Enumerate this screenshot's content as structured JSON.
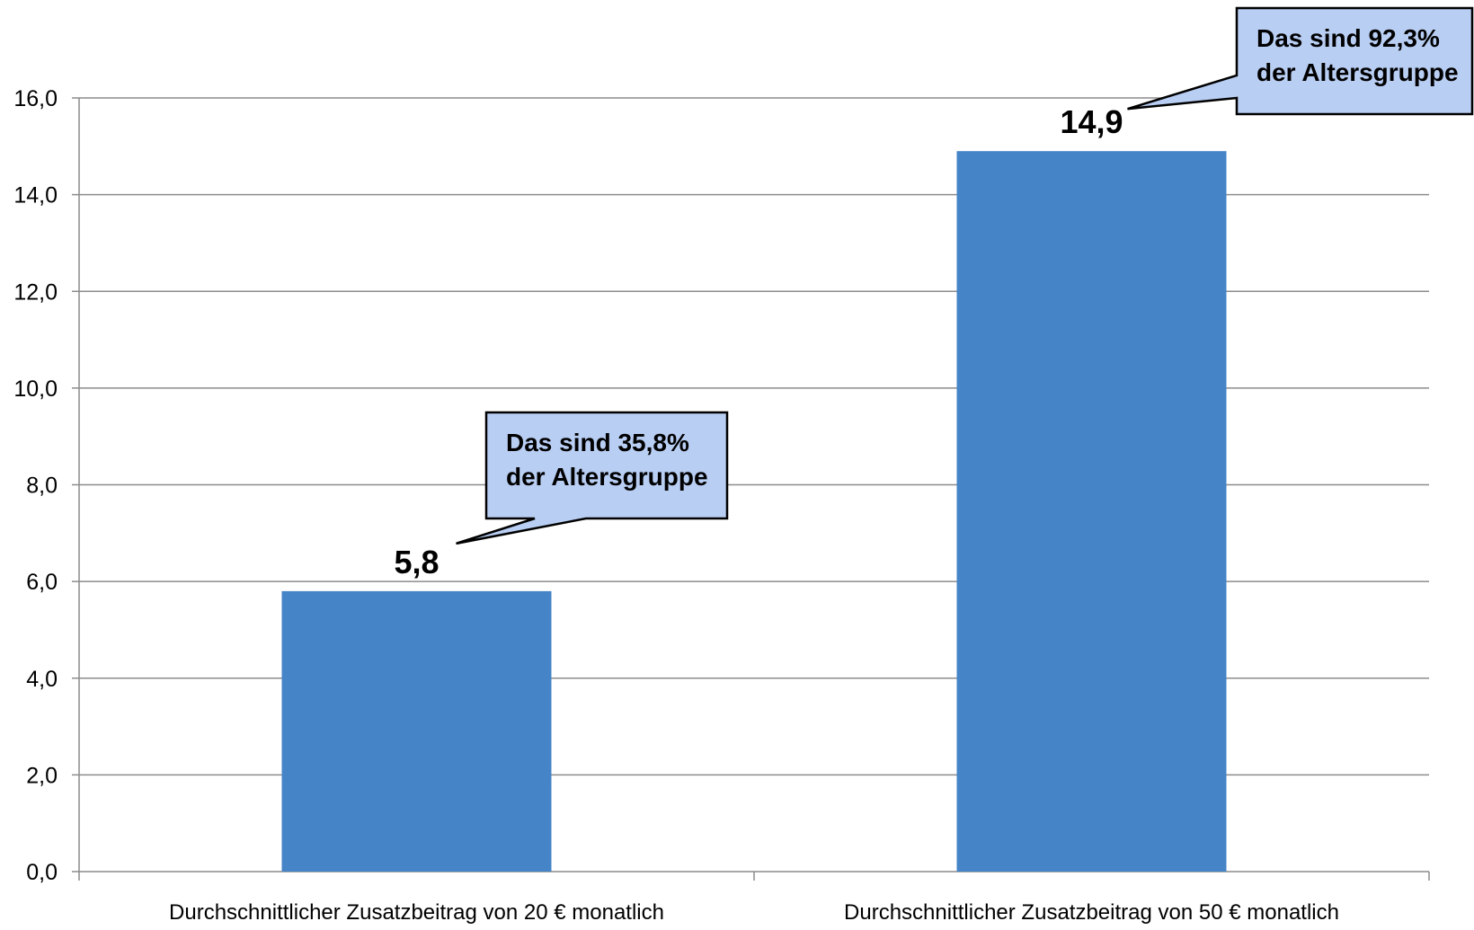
{
  "chart_data": {
    "type": "bar",
    "categories": [
      "Durchschnittlicher Zusatzbeitrag von 20 € monatlich",
      "Durchschnittlicher Zusatzbeitrag von 50 € monatlich"
    ],
    "values": [
      5.8,
      14.9
    ],
    "value_labels": [
      "5,8",
      "14,9"
    ],
    "title": "",
    "xlabel": "",
    "ylabel": "",
    "ylim": [
      0,
      16
    ],
    "y_ticks": [
      0,
      2,
      4,
      6,
      8,
      10,
      12,
      14,
      16
    ],
    "y_tick_labels": [
      "0,0",
      "2,0",
      "4,0",
      "6,0",
      "8,0",
      "10,0",
      "12,0",
      "14,0",
      "16,0"
    ],
    "grid": true,
    "legend": "none",
    "bar_color": "#4584c7",
    "callout_fill": "#b9cef3",
    "annotations": [
      {
        "category_index": 0,
        "lines": [
          "Das sind 35,8%",
          "der Altersgruppe"
        ]
      },
      {
        "category_index": 1,
        "lines": [
          "Das sind 92,3%",
          "der Altersgruppe"
        ]
      }
    ]
  }
}
